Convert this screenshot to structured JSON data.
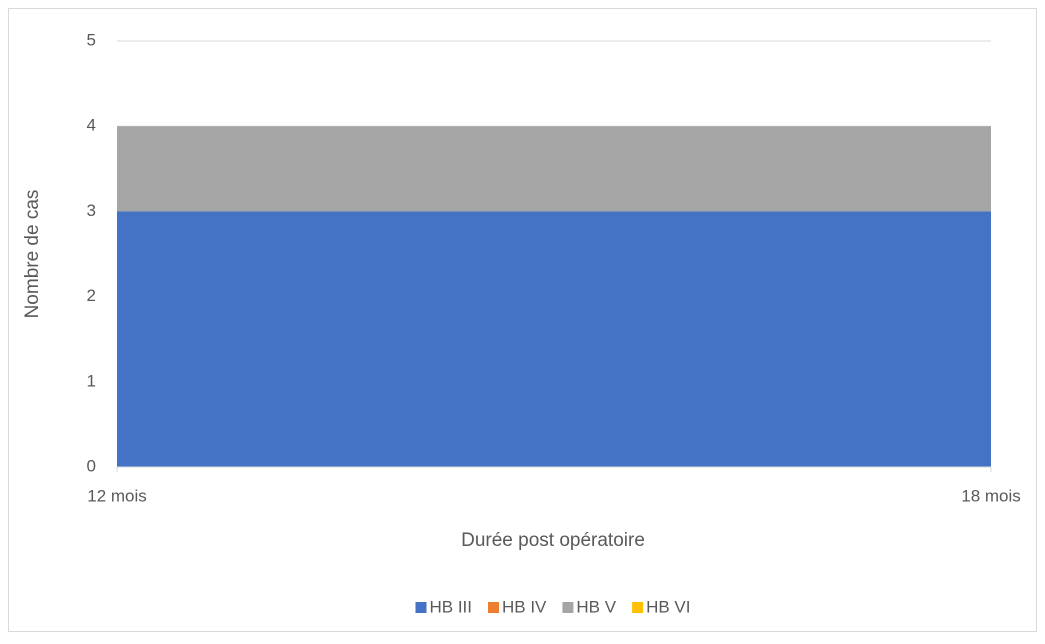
{
  "chart_data": {
    "type": "stacked_area",
    "x_label": "Durée post opératoire",
    "y_label": "Nombre de cas",
    "categories": [
      "12 mois",
      "18 mois"
    ],
    "series": [
      {
        "name": "HB III",
        "color": "#4472c4",
        "values": [
          3,
          3
        ]
      },
      {
        "name": "HB IV",
        "color": "#ed7d31",
        "values": [
          0,
          0
        ]
      },
      {
        "name": "HB V",
        "color": "#a5a5a5",
        "values": [
          1,
          1
        ]
      },
      {
        "name": "HB VI",
        "color": "#ffc000",
        "values": [
          0,
          0
        ]
      }
    ],
    "ylim": [
      0,
      5
    ],
    "yticks": [
      0,
      1,
      2,
      3,
      4,
      5
    ],
    "grid": true,
    "legend": "bottom"
  }
}
